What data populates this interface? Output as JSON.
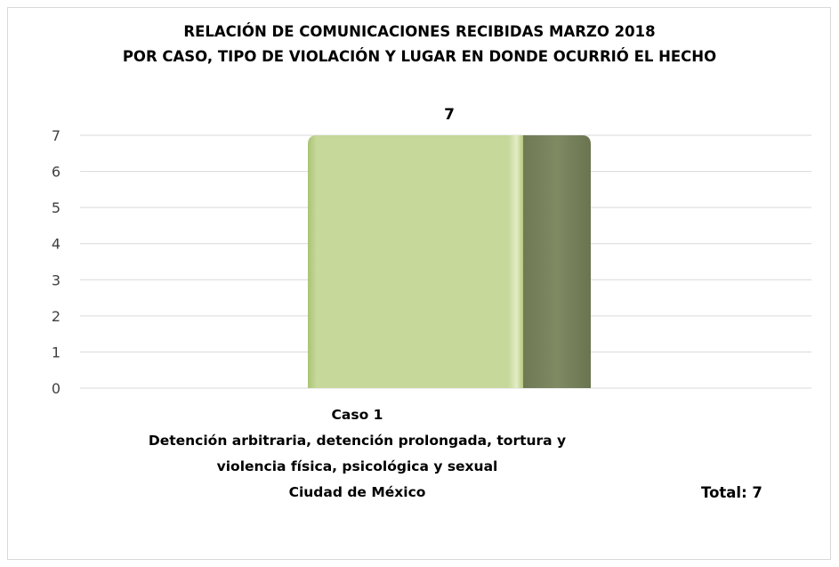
{
  "chart_data": {
    "type": "bar",
    "title_lines": [
      "RELACIÓN DE COMUNICACIONES RECIBIDAS MARZO 2018",
      "POR CASO, TIPO DE VIOLACIÓN Y LUGAR EN DONDE OCURRIÓ EL HECHO"
    ],
    "categories": [
      "Caso 1"
    ],
    "category_label_lines": [
      "Caso 1",
      "Detención arbitraria, detención prolongada, tortura y",
      "violencia física, psicológica y sexual",
      "Ciudad de México"
    ],
    "values": [
      7
    ],
    "data_labels": [
      "7"
    ],
    "ylim": [
      0,
      7
    ],
    "yticks": [
      0,
      1,
      2,
      3,
      4,
      5,
      6,
      7
    ],
    "grid": true,
    "legend": "none",
    "total_label": "Total:  7",
    "colors": {
      "bar_front": "#c6d89a",
      "bar_side": "#7f8a63",
      "gridline": "#d9d9d9"
    }
  }
}
